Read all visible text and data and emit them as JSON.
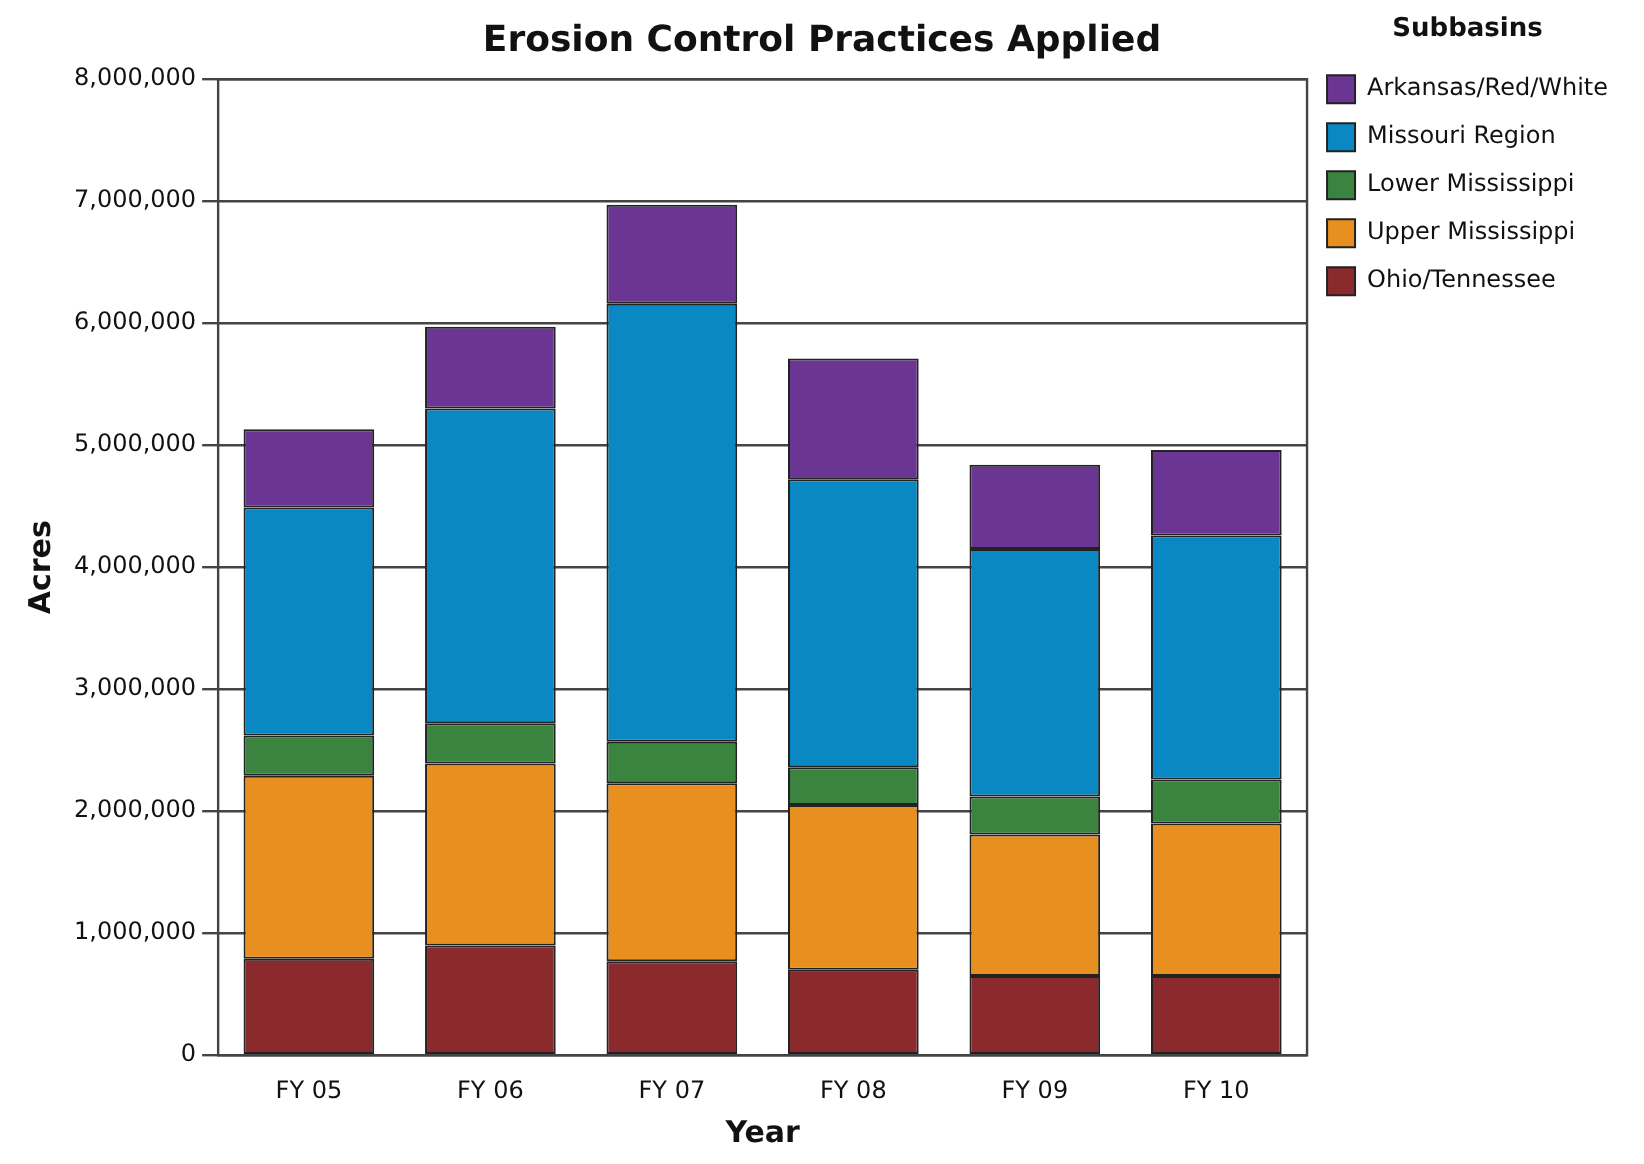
{
  "chart_data": {
    "type": "bar",
    "title": "Erosion Control Practices Applied",
    "xlabel": "Year",
    "ylabel": "Acres",
    "legend_title": "Subbasins",
    "legend": "right",
    "grid": "y",
    "stacked": true,
    "categories": [
      "FY 05",
      "FY 06",
      "FY 07",
      "FY 08",
      "FY 09",
      "FY 10"
    ],
    "series": [
      {
        "name": "Ohio/Tennessee",
        "color": "#8b2a2d",
        "values": [
          790000,
          900000,
          770000,
          700000,
          650000,
          650000
        ]
      },
      {
        "name": "Upper Mississippi",
        "color": "#e8901f",
        "values": [
          1500000,
          1490000,
          1460000,
          1350000,
          1160000,
          1250000
        ]
      },
      {
        "name": "Lower Mississippi",
        "color": "#3a8440",
        "values": [
          330000,
          330000,
          340000,
          310000,
          310000,
          360000
        ]
      },
      {
        "name": "Missouri Region",
        "color": "#0a88c4",
        "values": [
          1870000,
          2580000,
          3590000,
          2360000,
          2030000,
          2000000
        ]
      },
      {
        "name": "Arkansas/Red/White",
        "color": "#6b3594",
        "values": [
          640000,
          670000,
          810000,
          990000,
          690000,
          700000
        ]
      }
    ],
    "ylim": [
      0,
      8000000
    ],
    "yticks": [
      0,
      {
        "value": 1000000,
        "label": "1,000,000"
      },
      {
        "value": 2000000,
        "label": "2,000,000"
      },
      {
        "value": 3000000,
        "label": "3,000,000"
      },
      {
        "value": 4000000,
        "label": "4,000,000"
      },
      {
        "value": 5000000,
        "label": "5,000,000"
      },
      {
        "value": 6000000,
        "label": "6,000,000"
      },
      {
        "value": 7000000,
        "label": "7,000,000"
      },
      {
        "value": 8000000,
        "label": "8,000,000"
      }
    ]
  }
}
